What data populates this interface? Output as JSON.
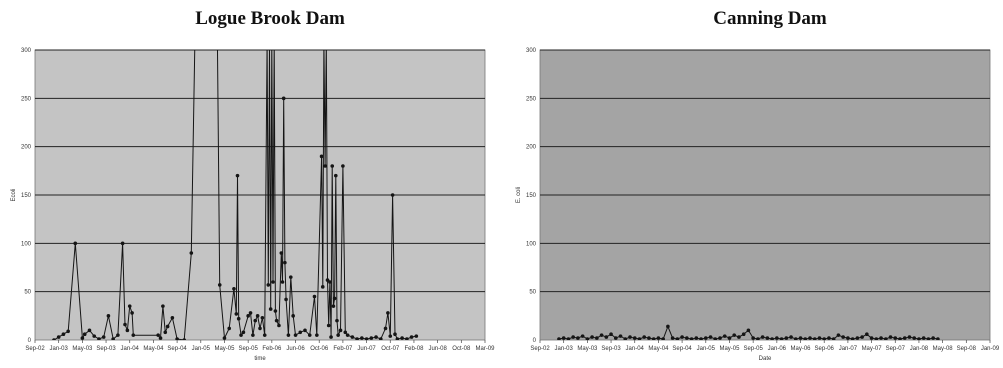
{
  "chart_data": [
    {
      "type": "line",
      "title": "Logue Brook Dam",
      "xlabel": "time",
      "ylabel": "Ecoli",
      "ylim": [
        0,
        300
      ],
      "yticks": [
        "0",
        "50",
        "100",
        "150",
        "200",
        "250",
        "300"
      ],
      "xticks": [
        "Sep-02",
        "Jan-03",
        "May-03",
        "Sep-03",
        "Jan-04",
        "May-04",
        "Sep-04",
        "Jan-05",
        "May-05",
        "Sep-05",
        "Feb-06",
        "Jun-06",
        "Oct-06",
        "Feb-07",
        "Jun-07",
        "Oct-07",
        "Feb-08",
        "Jun-08",
        "Oct-08",
        "Mar-09"
      ],
      "grid": "horizontal",
      "plot_bg": "#c4c4c4",
      "series_color": "#151515",
      "points": [
        [
          0.8,
          0
        ],
        [
          1.0,
          3
        ],
        [
          1.2,
          6
        ],
        [
          1.4,
          9
        ],
        [
          1.7,
          100
        ],
        [
          2.0,
          2
        ],
        [
          2.1,
          6
        ],
        [
          2.3,
          10
        ],
        [
          2.5,
          4
        ],
        [
          2.7,
          1
        ],
        [
          2.9,
          3
        ],
        [
          3.1,
          25
        ],
        [
          3.3,
          1
        ],
        [
          3.5,
          5
        ],
        [
          3.7,
          100
        ],
        [
          3.8,
          16
        ],
        [
          3.9,
          10
        ],
        [
          4.0,
          35
        ],
        [
          4.1,
          28
        ],
        [
          4.15,
          5
        ],
        [
          5.2,
          5
        ],
        [
          5.3,
          2
        ],
        [
          5.4,
          35
        ],
        [
          5.5,
          8
        ],
        [
          5.6,
          14
        ],
        [
          5.8,
          23
        ],
        [
          6.0,
          1
        ],
        [
          6.3,
          0
        ],
        [
          6.6,
          90
        ],
        [
          6.75,
          310
        ],
        [
          7.7,
          310
        ],
        [
          7.8,
          57
        ],
        [
          8.0,
          2
        ],
        [
          8.2,
          12
        ],
        [
          8.4,
          53
        ],
        [
          8.5,
          27
        ],
        [
          8.55,
          170
        ],
        [
          8.6,
          22
        ],
        [
          8.7,
          5
        ],
        [
          8.8,
          8
        ],
        [
          9.0,
          25
        ],
        [
          9.1,
          28
        ],
        [
          9.2,
          5
        ],
        [
          9.3,
          20
        ],
        [
          9.4,
          25
        ],
        [
          9.5,
          12
        ],
        [
          9.6,
          23
        ],
        [
          9.7,
          5
        ],
        [
          9.8,
          310
        ],
        [
          9.85,
          57
        ],
        [
          9.9,
          310
        ],
        [
          9.95,
          32
        ],
        [
          10.0,
          310
        ],
        [
          10.05,
          60
        ],
        [
          10.1,
          310
        ],
        [
          10.15,
          30
        ],
        [
          10.2,
          20
        ],
        [
          10.3,
          15
        ],
        [
          10.4,
          90
        ],
        [
          10.45,
          60
        ],
        [
          10.5,
          250
        ],
        [
          10.55,
          80
        ],
        [
          10.6,
          42
        ],
        [
          10.7,
          5
        ],
        [
          10.8,
          65
        ],
        [
          10.9,
          25
        ],
        [
          11.0,
          5
        ],
        [
          11.2,
          8
        ],
        [
          11.4,
          10
        ],
        [
          11.6,
          5
        ],
        [
          11.8,
          45
        ],
        [
          11.9,
          5
        ],
        [
          12.1,
          190
        ],
        [
          12.15,
          55
        ],
        [
          12.2,
          310
        ],
        [
          12.25,
          180
        ],
        [
          12.3,
          310
        ],
        [
          12.35,
          62
        ],
        [
          12.4,
          15
        ],
        [
          12.45,
          60
        ],
        [
          12.5,
          3
        ],
        [
          12.55,
          180
        ],
        [
          12.6,
          35
        ],
        [
          12.65,
          43
        ],
        [
          12.7,
          170
        ],
        [
          12.75,
          20
        ],
        [
          12.8,
          5
        ],
        [
          12.9,
          10
        ],
        [
          13.0,
          180
        ],
        [
          13.1,
          8
        ],
        [
          13.2,
          5
        ],
        [
          13.4,
          3
        ],
        [
          13.6,
          1
        ],
        [
          13.8,
          2
        ],
        [
          14.0,
          1
        ],
        [
          14.2,
          2
        ],
        [
          14.4,
          3
        ],
        [
          14.6,
          1
        ],
        [
          14.8,
          12
        ],
        [
          14.9,
          28
        ],
        [
          15.0,
          4
        ],
        [
          15.1,
          150
        ],
        [
          15.2,
          6
        ],
        [
          15.3,
          1
        ],
        [
          15.5,
          2
        ],
        [
          15.7,
          1
        ],
        [
          15.9,
          3
        ],
        [
          16.1,
          4
        ]
      ]
    },
    {
      "type": "line",
      "title": "Canning Dam",
      "xlabel": "Date",
      "ylabel": "E. coli",
      "ylim": [
        0,
        300
      ],
      "yticks": [
        "0",
        "50",
        "100",
        "150",
        "200",
        "250",
        "300"
      ],
      "xticks": [
        "Sep-02",
        "Jan-03",
        "May-03",
        "Sep-03",
        "Jan-04",
        "May-04",
        "Sep-04",
        "Jan-05",
        "May-05",
        "Sep-05",
        "Jan-06",
        "May-06",
        "Sep-06",
        "Jan-07",
        "May-07",
        "Sep-07",
        "Jan-08",
        "May-08",
        "Sep-08",
        "Jan-09"
      ],
      "grid": "horizontal",
      "plot_bg": "#a4a4a4",
      "series_color": "#151515",
      "points": [
        [
          0.8,
          1
        ],
        [
          1.0,
          2
        ],
        [
          1.2,
          1
        ],
        [
          1.4,
          3
        ],
        [
          1.6,
          2
        ],
        [
          1.8,
          4
        ],
        [
          2.0,
          1
        ],
        [
          2.2,
          3
        ],
        [
          2.4,
          2
        ],
        [
          2.6,
          5
        ],
        [
          2.8,
          3
        ],
        [
          3.0,
          6
        ],
        [
          3.2,
          2
        ],
        [
          3.4,
          4
        ],
        [
          3.6,
          1
        ],
        [
          3.8,
          3
        ],
        [
          4.0,
          2
        ],
        [
          4.2,
          1
        ],
        [
          4.4,
          3
        ],
        [
          4.6,
          2
        ],
        [
          4.8,
          1
        ],
        [
          5.0,
          2
        ],
        [
          5.2,
          1
        ],
        [
          5.4,
          14
        ],
        [
          5.6,
          2
        ],
        [
          5.8,
          1
        ],
        [
          6.0,
          3
        ],
        [
          6.2,
          2
        ],
        [
          6.4,
          1
        ],
        [
          6.6,
          2
        ],
        [
          6.8,
          1
        ],
        [
          7.0,
          2
        ],
        [
          7.2,
          3
        ],
        [
          7.4,
          1
        ],
        [
          7.6,
          2
        ],
        [
          7.8,
          4
        ],
        [
          8.0,
          2
        ],
        [
          8.2,
          5
        ],
        [
          8.4,
          3
        ],
        [
          8.6,
          6
        ],
        [
          8.8,
          10
        ],
        [
          9.0,
          2
        ],
        [
          9.2,
          1
        ],
        [
          9.4,
          3
        ],
        [
          9.6,
          2
        ],
        [
          9.8,
          1
        ],
        [
          10.0,
          2
        ],
        [
          10.2,
          1
        ],
        [
          10.4,
          2
        ],
        [
          10.6,
          3
        ],
        [
          10.8,
          1
        ],
        [
          11.0,
          2
        ],
        [
          11.2,
          1
        ],
        [
          11.4,
          2
        ],
        [
          11.6,
          1
        ],
        [
          11.8,
          2
        ],
        [
          12.0,
          1
        ],
        [
          12.2,
          2
        ],
        [
          12.4,
          1
        ],
        [
          12.6,
          5
        ],
        [
          12.8,
          3
        ],
        [
          13.0,
          2
        ],
        [
          13.2,
          1
        ],
        [
          13.4,
          2
        ],
        [
          13.6,
          3
        ],
        [
          13.8,
          6
        ],
        [
          14.0,
          2
        ],
        [
          14.2,
          1
        ],
        [
          14.4,
          2
        ],
        [
          14.6,
          1
        ],
        [
          14.8,
          3
        ],
        [
          15.0,
          2
        ],
        [
          15.2,
          1
        ],
        [
          15.4,
          2
        ],
        [
          15.6,
          3
        ],
        [
          15.8,
          2
        ],
        [
          16.0,
          1
        ],
        [
          16.2,
          2
        ],
        [
          16.4,
          1
        ],
        [
          16.6,
          2
        ],
        [
          16.8,
          1
        ]
      ]
    }
  ]
}
